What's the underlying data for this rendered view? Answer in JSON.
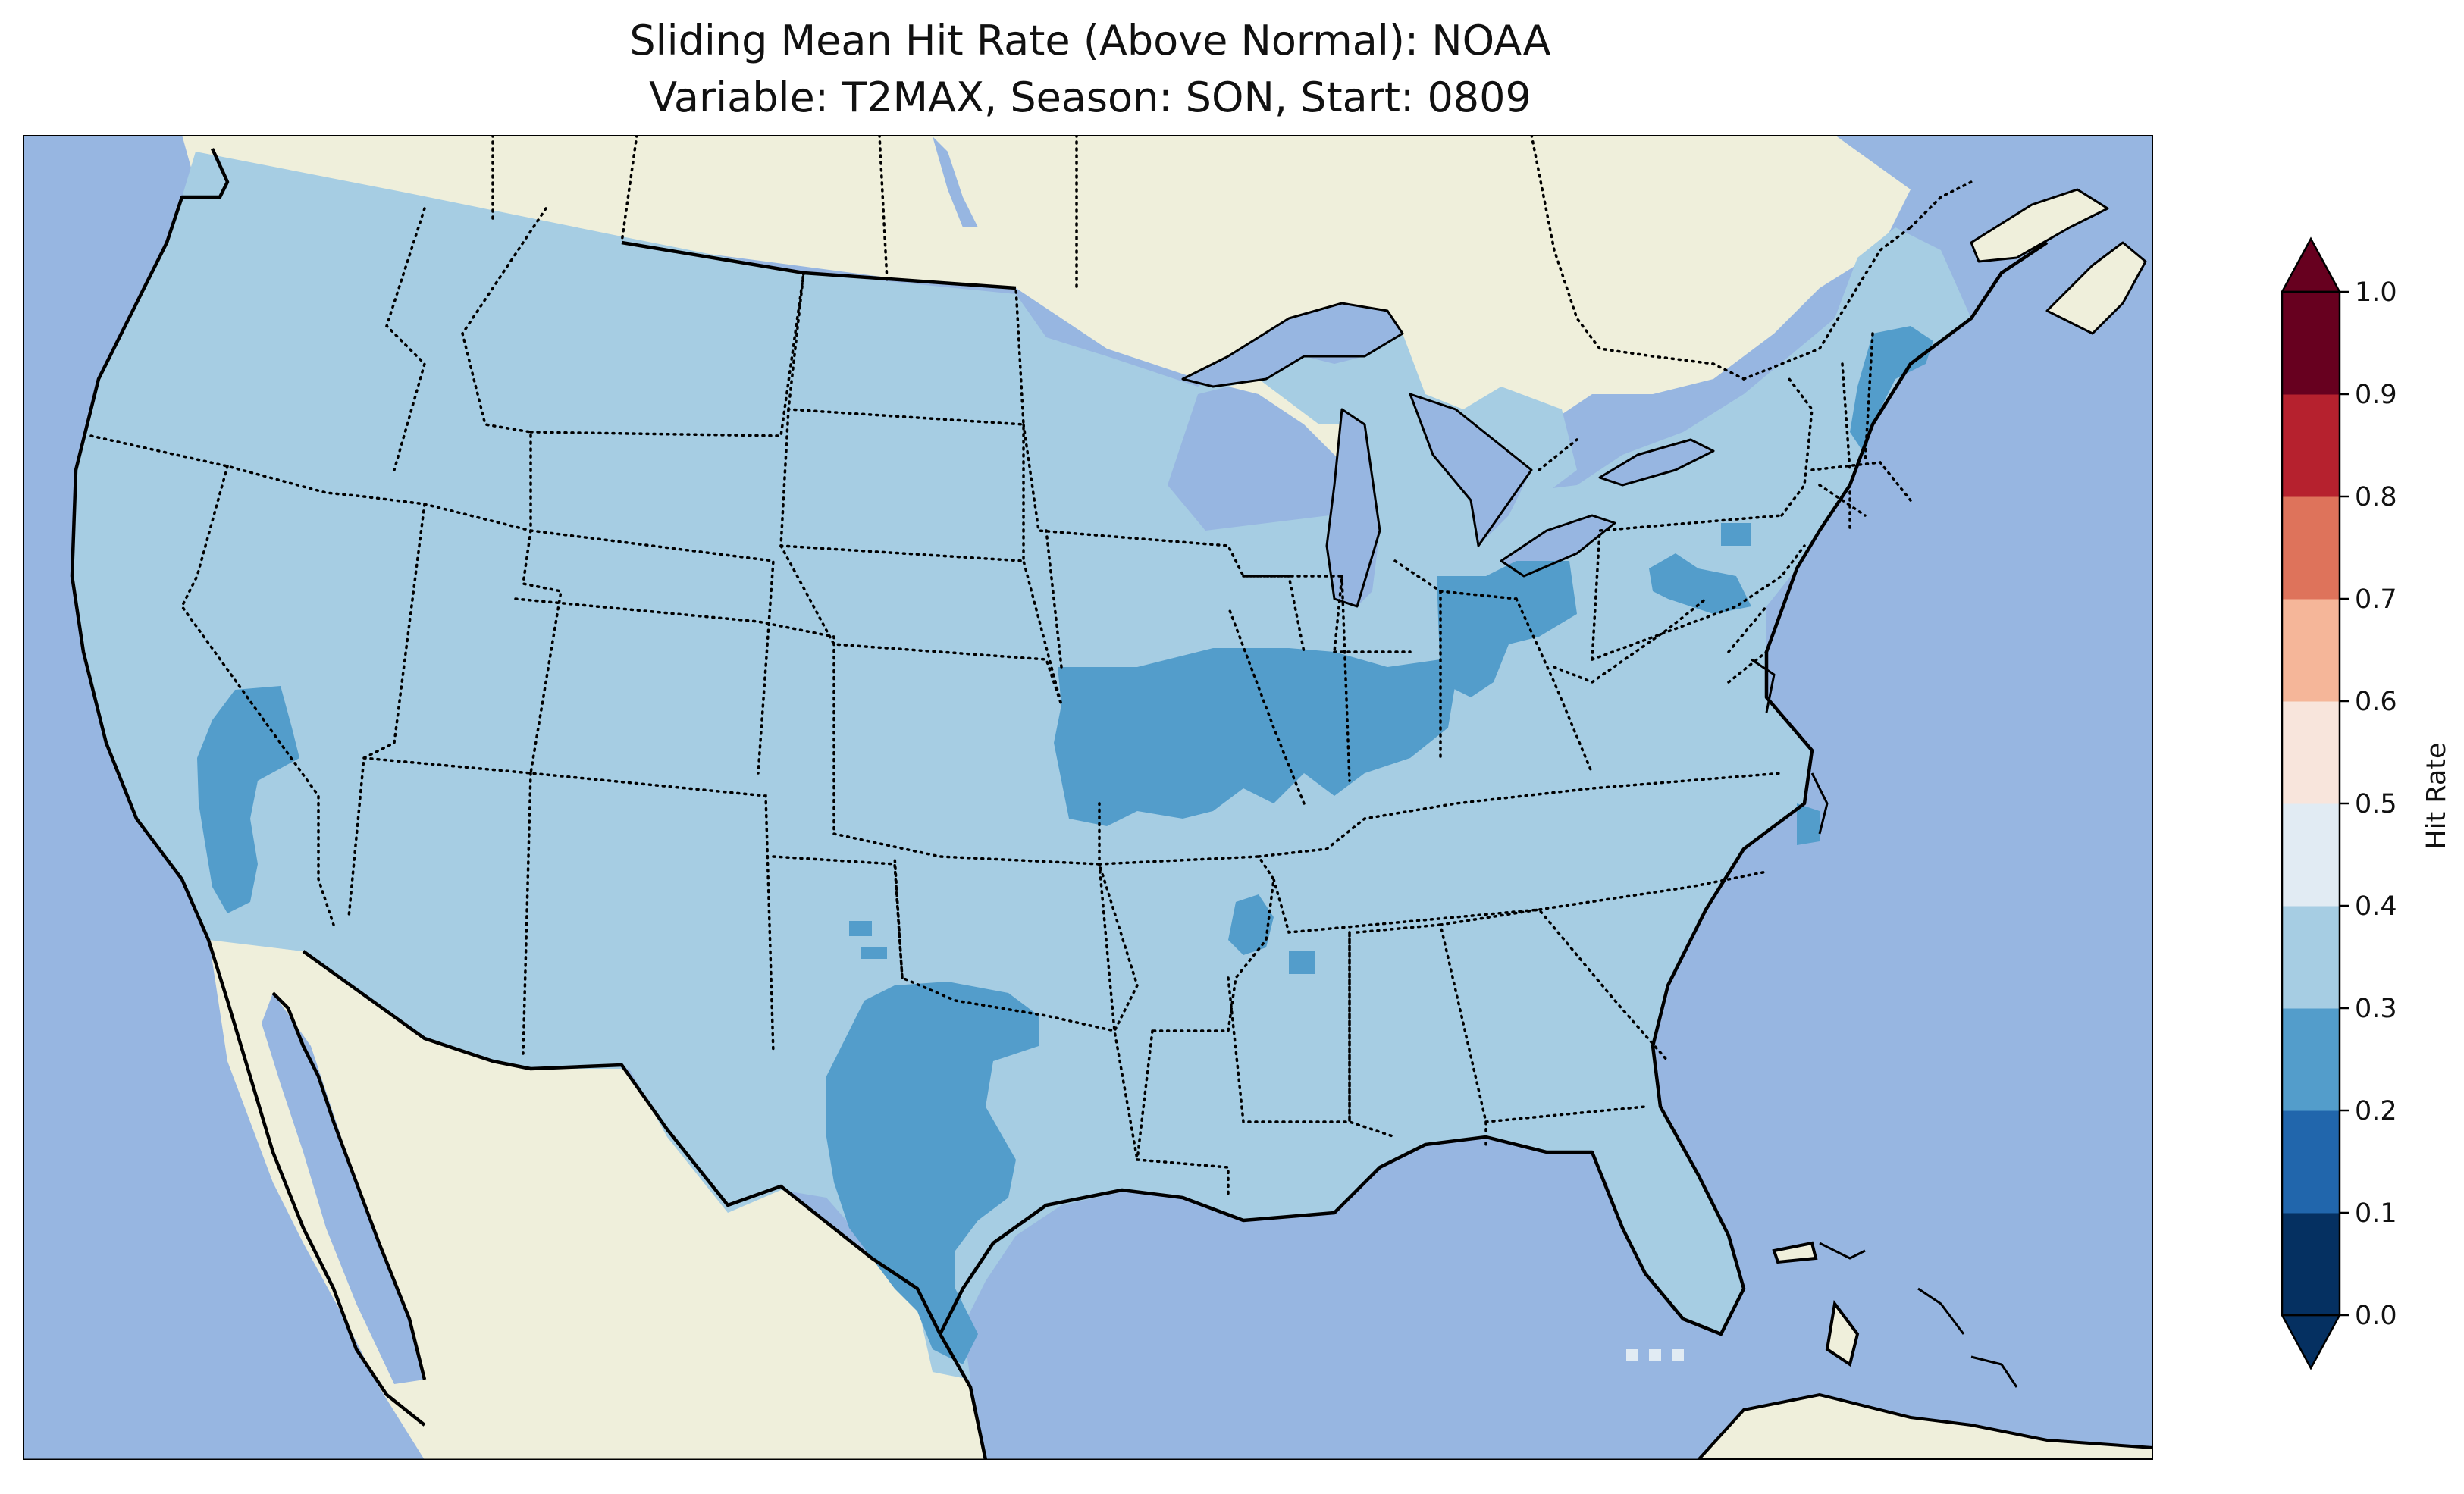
{
  "figure": {
    "title_line1": "Sliding Mean Hit Rate (Above Normal): NOAA",
    "title_line2": "Variable: T2MAX, Season: SON, Start: 0809"
  },
  "map": {
    "ocean_color": "#97b6e1",
    "land_color": "#efefdb",
    "lake_color": "#97b6e1",
    "domain_fill_value": 0.35,
    "regions": [
      {
        "name": "california-nevada",
        "hit_rate": 0.25
      },
      {
        "name": "iowa-illinois-missouri-indiana",
        "hit_rate": 0.25
      },
      {
        "name": "texas",
        "hit_rate": 0.25
      },
      {
        "name": "ohio-michigan-east",
        "hit_rate": 0.25
      },
      {
        "name": "pennsylvania",
        "hit_rate": 0.25
      },
      {
        "name": "new-hampshire-maine",
        "hit_rate": 0.25
      },
      {
        "name": "arkansas",
        "hit_rate": 0.25
      },
      {
        "name": "north-carolina-coast",
        "hit_rate": 0.25
      },
      {
        "name": "south-florida-dots",
        "hit_rate": 0.45
      }
    ]
  },
  "colorbar": {
    "label": "Hit Rate",
    "extend": "both",
    "ticks": [
      "0.0",
      "0.1",
      "0.2",
      "0.3",
      "0.4",
      "0.5",
      "0.6",
      "0.7",
      "0.8",
      "0.9",
      "1.0"
    ],
    "bins": [
      {
        "from": 0.0,
        "to": 0.1,
        "color": "#053061"
      },
      {
        "from": 0.1,
        "to": 0.2,
        "color": "#2166ac"
      },
      {
        "from": 0.2,
        "to": 0.3,
        "color": "#539dcb"
      },
      {
        "from": 0.3,
        "to": 0.4,
        "color": "#a6cde3"
      },
      {
        "from": 0.4,
        "to": 0.5,
        "color": "#e1ebf3"
      },
      {
        "from": 0.5,
        "to": 0.6,
        "color": "#f8e5dc"
      },
      {
        "from": 0.6,
        "to": 0.7,
        "color": "#f5b699"
      },
      {
        "from": 0.7,
        "to": 0.8,
        "color": "#de735b"
      },
      {
        "from": 0.8,
        "to": 0.9,
        "color": "#b6212e"
      },
      {
        "from": 0.9,
        "to": 1.0,
        "color": "#67001f"
      }
    ]
  }
}
